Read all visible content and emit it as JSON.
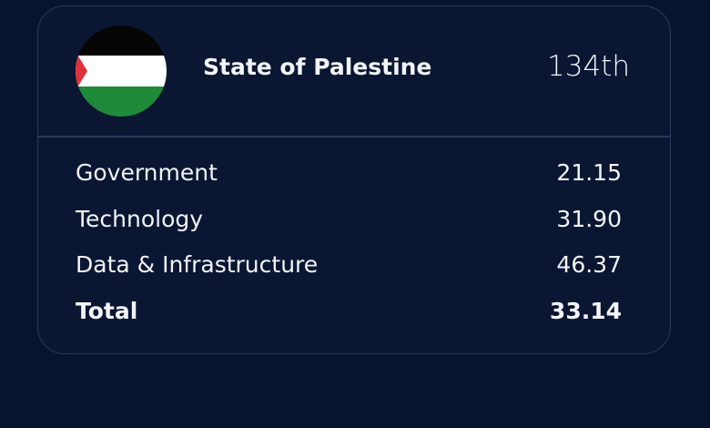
{
  "header": {
    "country": "State of Palestine",
    "rank": "134th"
  },
  "table": {
    "rows": [
      [
        "Government",
        "21.15"
      ],
      [
        "Technology",
        "31.90"
      ],
      [
        "Data & Infrastructure",
        "46.37"
      ],
      [
        "Total",
        "33.14"
      ]
    ]
  }
}
